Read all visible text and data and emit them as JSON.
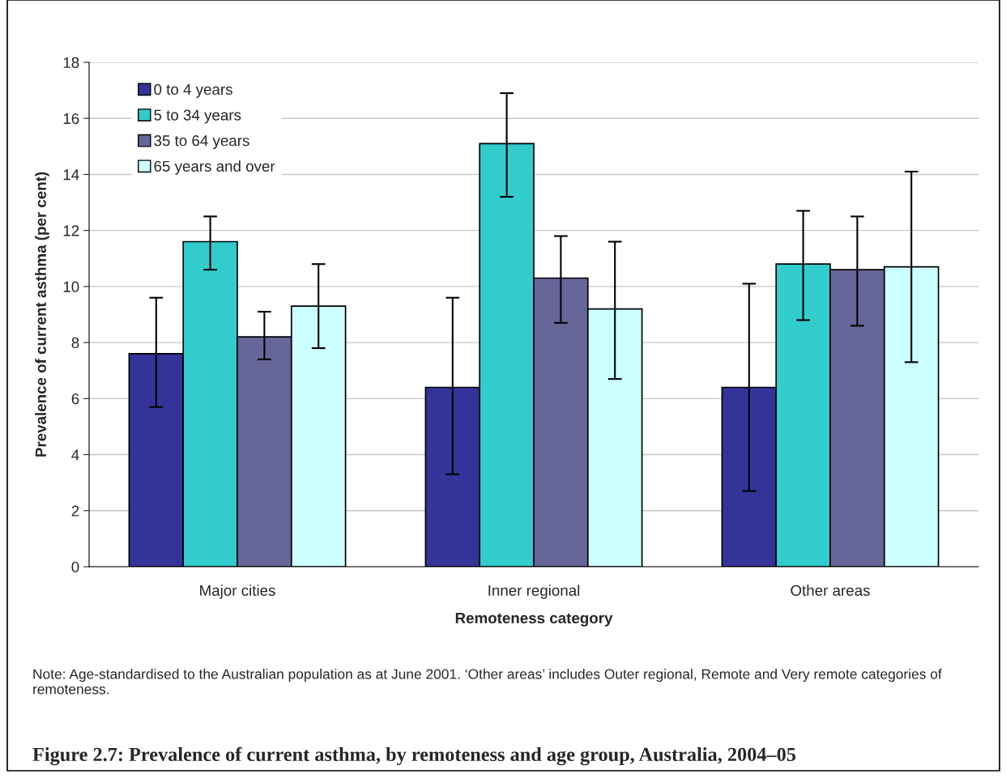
{
  "chart_data": {
    "type": "bar",
    "title": "Figure 2.7: Prevalence of current asthma, by remoteness and age group, Australia, 2004–05",
    "xlabel": "Remoteness category",
    "ylabel": "Prevalence of current asthma (per cent)",
    "categories": [
      "Major cities",
      "Inner regional",
      "Other areas"
    ],
    "series": [
      {
        "name": "0 to 4 years",
        "color": "#333399",
        "values": [
          7.6,
          6.4,
          6.4
        ],
        "errors": [
          [
            5.7,
            9.6
          ],
          [
            3.3,
            9.6
          ],
          [
            2.7,
            10.1
          ]
        ]
      },
      {
        "name": "5 to 34 years",
        "color": "#33cccc",
        "values": [
          11.6,
          15.1,
          10.8
        ],
        "errors": [
          [
            10.6,
            12.5
          ],
          [
            13.2,
            16.9
          ],
          [
            8.8,
            12.7
          ]
        ]
      },
      {
        "name": "35 to 64 years",
        "color": "#666699",
        "values": [
          8.2,
          10.3,
          10.6
        ],
        "errors": [
          [
            7.4,
            9.1
          ],
          [
            8.7,
            11.8
          ],
          [
            8.6,
            12.5
          ]
        ]
      },
      {
        "name": "65 years and over",
        "color": "#ccffff",
        "values": [
          9.3,
          9.2,
          10.7
        ],
        "errors": [
          [
            7.8,
            10.8
          ],
          [
            6.7,
            11.6
          ],
          [
            7.3,
            14.1
          ]
        ]
      }
    ],
    "ylim": [
      0,
      18
    ],
    "yticks": [
      0,
      2,
      4,
      6,
      8,
      10,
      12,
      14,
      16,
      18
    ],
    "grid": "y",
    "legend": "top left",
    "annotations": [
      "Note: Age-standardised to the Australian population as at June 2001. ‘Other areas’ includes Outer regional, Remote and Very remote categories of remoteness."
    ]
  }
}
